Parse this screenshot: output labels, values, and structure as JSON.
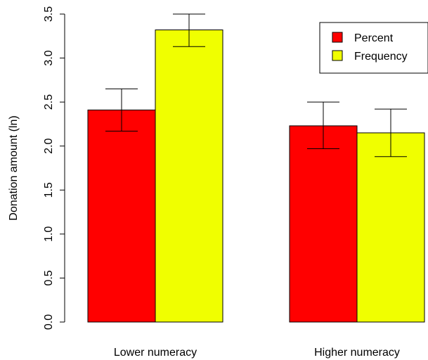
{
  "chart_data": {
    "type": "bar",
    "ylabel": "Donation amount (ln)",
    "ylim": [
      0,
      3.5
    ],
    "yticks": [
      "0.0",
      "0.5",
      "1.0",
      "1.5",
      "2.0",
      "2.5",
      "3.0",
      "3.5"
    ],
    "categories": [
      "Lower numeracy",
      "Higher numeracy"
    ],
    "series": [
      {
        "name": "Percent",
        "color": "#ff0000",
        "values": [
          2.41,
          2.23
        ],
        "error_low": [
          2.17,
          1.97
        ],
        "error_high": [
          2.65,
          2.5
        ]
      },
      {
        "name": "Frequency",
        "color": "#f0ff00",
        "values": [
          3.32,
          2.15
        ],
        "error_low": [
          3.13,
          1.88
        ],
        "error_high": [
          3.5,
          2.42
        ]
      }
    ],
    "legend": {
      "placement": "top-right",
      "entries": [
        "Percent",
        "Frequency"
      ]
    },
    "grid": false
  }
}
